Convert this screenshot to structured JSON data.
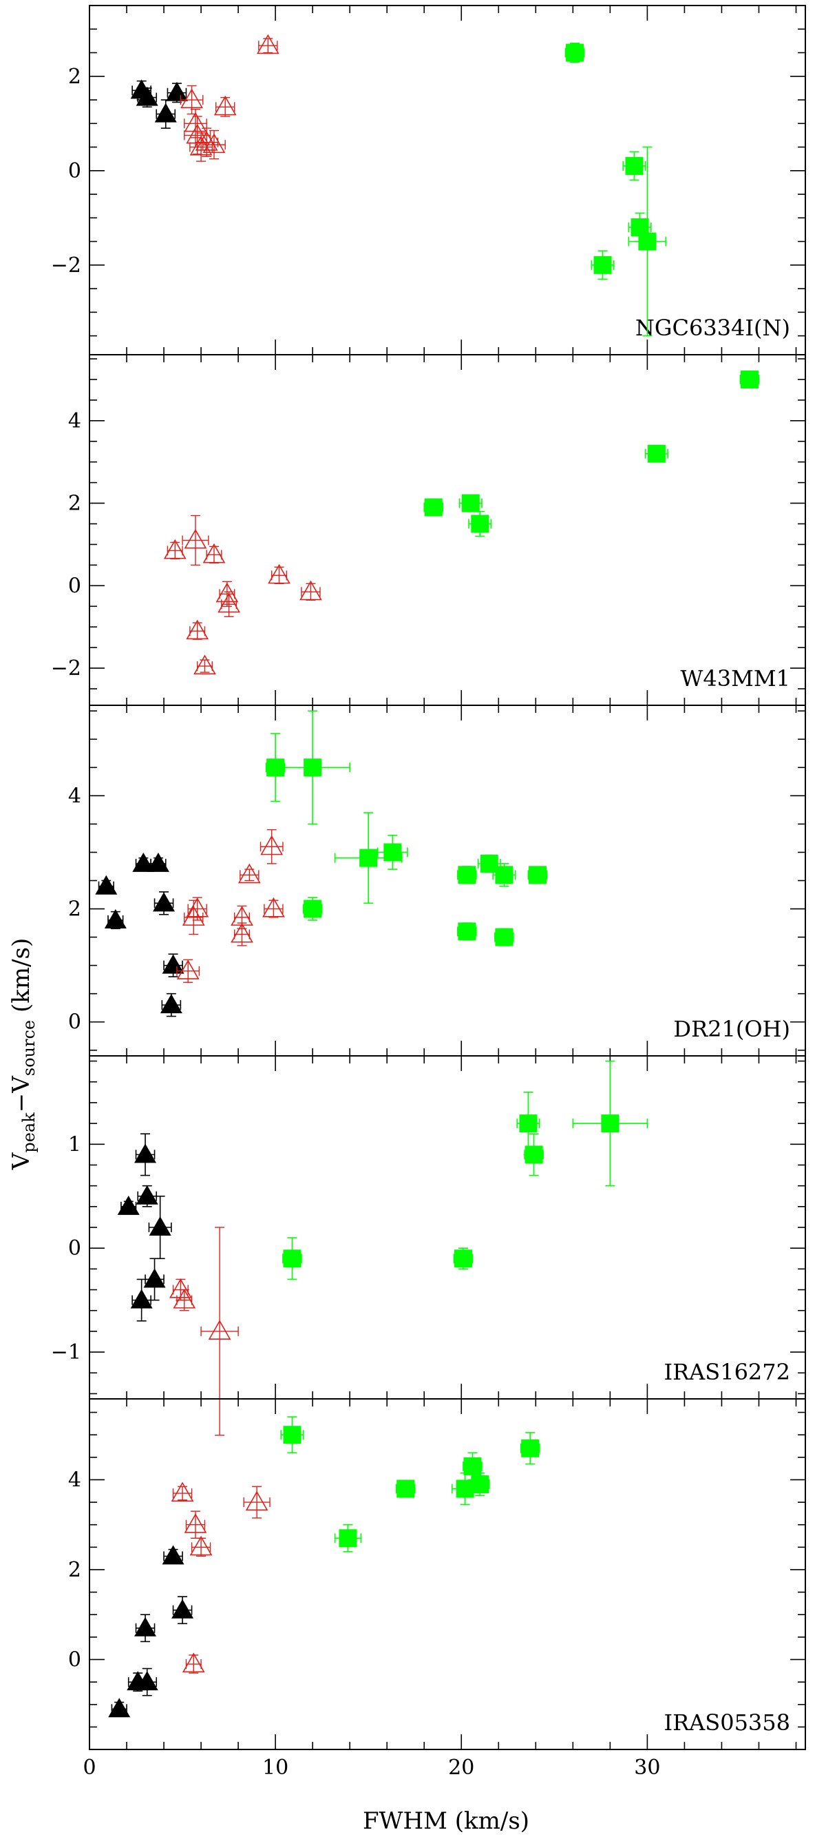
{
  "figure": {
    "xlabel": "FWHM (km/s)",
    "ylabel_main": "V",
    "ylabel_sub1": "peak",
    "ylabel_mid": "−V",
    "ylabel_sub2": "source",
    "ylabel_unit": " (km/s)"
  },
  "colors": {
    "black_triangle": "#000000",
    "red_open_triangle": "#e0201a",
    "green_square": "#00ff00"
  },
  "chart_data": [
    {
      "type": "scatter",
      "panel_label": "NGC6334I(N)",
      "xlim": [
        0,
        38.5
      ],
      "ylim": [
        -3.9,
        3.5
      ],
      "xticks": [
        0,
        10,
        20,
        30
      ],
      "yticks": [
        -2,
        0,
        2
      ],
      "series": [
        {
          "marker": "black-triangle",
          "points": [
            {
              "x": 2.8,
              "y": 1.7,
              "xerr": 0.5,
              "yerr": 0.2
            },
            {
              "x": 3.1,
              "y": 1.55,
              "xerr": 0.5,
              "yerr": 0.2
            },
            {
              "x": 4.1,
              "y": 1.2,
              "xerr": 0.5,
              "yerr": 0.3
            },
            {
              "x": 4.7,
              "y": 1.65,
              "xerr": 0.5,
              "yerr": 0.2
            }
          ]
        },
        {
          "marker": "red-open-triangle",
          "points": [
            {
              "x": 5.5,
              "y": 1.5,
              "xerr": 0.6,
              "yerr": 0.3
            },
            {
              "x": 5.7,
              "y": 1.0,
              "xerr": 0.6,
              "yerr": 0.3
            },
            {
              "x": 5.8,
              "y": 0.75,
              "xerr": 0.7,
              "yerr": 0.4
            },
            {
              "x": 6.0,
              "y": 0.5,
              "xerr": 0.6,
              "yerr": 0.3
            },
            {
              "x": 6.3,
              "y": 0.6,
              "xerr": 0.6,
              "yerr": 0.3
            },
            {
              "x": 6.7,
              "y": 0.55,
              "xerr": 0.6,
              "yerr": 0.3
            },
            {
              "x": 7.3,
              "y": 1.35,
              "xerr": 0.5,
              "yerr": 0.2
            },
            {
              "x": 9.6,
              "y": 2.65,
              "xerr": 0.5,
              "yerr": 0.15
            }
          ]
        },
        {
          "marker": "green-square",
          "points": [
            {
              "x": 26.1,
              "y": 2.5,
              "xerr": 0.5,
              "yerr": 0.2
            },
            {
              "x": 27.6,
              "y": -2.0,
              "xerr": 0.6,
              "yerr": 0.3
            },
            {
              "x": 29.3,
              "y": 0.1,
              "xerr": 0.6,
              "yerr": 0.3
            },
            {
              "x": 29.6,
              "y": -1.2,
              "xerr": 0.6,
              "yerr": 0.3
            },
            {
              "x": 30.0,
              "y": -1.5,
              "xerr": 1.0,
              "yerr": 2.0
            }
          ]
        }
      ]
    },
    {
      "type": "scatter",
      "panel_label": "W43MM1",
      "xlim": [
        0,
        38.5
      ],
      "ylim": [
        -2.9,
        5.6
      ],
      "xticks": [
        0,
        10,
        20,
        30
      ],
      "yticks": [
        -2,
        0,
        2,
        4
      ],
      "series": [
        {
          "marker": "red-open-triangle",
          "points": [
            {
              "x": 4.6,
              "y": 0.85,
              "xerr": 0.4,
              "yerr": 0.2
            },
            {
              "x": 5.7,
              "y": 1.1,
              "xerr": 0.7,
              "yerr": 0.6
            },
            {
              "x": 5.8,
              "y": -1.1,
              "xerr": 0.4,
              "yerr": 0.2
            },
            {
              "x": 6.2,
              "y": -1.95,
              "xerr": 0.4,
              "yerr": 0.15
            },
            {
              "x": 6.7,
              "y": 0.75,
              "xerr": 0.4,
              "yerr": 0.2
            },
            {
              "x": 7.4,
              "y": -0.2,
              "xerr": 0.4,
              "yerr": 0.3
            },
            {
              "x": 7.5,
              "y": -0.45,
              "xerr": 0.4,
              "yerr": 0.3
            },
            {
              "x": 10.2,
              "y": 0.25,
              "xerr": 0.4,
              "yerr": 0.2
            },
            {
              "x": 11.9,
              "y": -0.15,
              "xerr": 0.5,
              "yerr": 0.2
            }
          ]
        },
        {
          "marker": "green-square",
          "points": [
            {
              "x": 18.5,
              "y": 1.9,
              "xerr": 0.5,
              "yerr": 0.2
            },
            {
              "x": 20.5,
              "y": 2.0,
              "xerr": 0.6,
              "yerr": 0.2
            },
            {
              "x": 21.0,
              "y": 1.5,
              "xerr": 0.6,
              "yerr": 0.3
            },
            {
              "x": 30.5,
              "y": 3.2,
              "xerr": 0.6,
              "yerr": 0.2
            },
            {
              "x": 35.5,
              "y": 5.0,
              "xerr": 0.5,
              "yerr": 0.2
            }
          ]
        }
      ]
    },
    {
      "type": "scatter",
      "panel_label": "DR21(OH)",
      "xlim": [
        0,
        38.5
      ],
      "ylim": [
        -0.6,
        5.6
      ],
      "xticks": [
        0,
        10,
        20,
        30
      ],
      "yticks": [
        0,
        2,
        4
      ],
      "series": [
        {
          "marker": "black-triangle",
          "points": [
            {
              "x": 0.9,
              "y": 2.4,
              "xerr": 0.4,
              "yerr": 0.1
            },
            {
              "x": 1.4,
              "y": 1.8,
              "xerr": 0.4,
              "yerr": 0.15
            },
            {
              "x": 2.9,
              "y": 2.8,
              "xerr": 0.4,
              "yerr": 0.1
            },
            {
              "x": 3.7,
              "y": 2.8,
              "xerr": 0.4,
              "yerr": 0.1
            },
            {
              "x": 4.0,
              "y": 2.1,
              "xerr": 0.5,
              "yerr": 0.2
            },
            {
              "x": 4.5,
              "y": 1.0,
              "xerr": 0.5,
              "yerr": 0.2
            },
            {
              "x": 4.4,
              "y": 0.3,
              "xerr": 0.5,
              "yerr": 0.2
            }
          ]
        },
        {
          "marker": "red-open-triangle",
          "points": [
            {
              "x": 5.3,
              "y": 0.9,
              "xerr": 0.6,
              "yerr": 0.2
            },
            {
              "x": 5.6,
              "y": 1.85,
              "xerr": 0.5,
              "yerr": 0.3
            },
            {
              "x": 5.8,
              "y": 2.0,
              "xerr": 0.5,
              "yerr": 0.2
            },
            {
              "x": 8.2,
              "y": 1.55,
              "xerr": 0.4,
              "yerr": 0.2
            },
            {
              "x": 8.2,
              "y": 1.85,
              "xerr": 0.4,
              "yerr": 0.2
            },
            {
              "x": 8.6,
              "y": 2.6,
              "xerr": 0.5,
              "yerr": 0.1
            },
            {
              "x": 9.8,
              "y": 3.1,
              "xerr": 0.6,
              "yerr": 0.3
            },
            {
              "x": 9.9,
              "y": 2.0,
              "xerr": 0.5,
              "yerr": 0.15
            }
          ]
        },
        {
          "marker": "green-square",
          "points": [
            {
              "x": 10.0,
              "y": 4.5,
              "xerr": 0.5,
              "yerr": 0.6
            },
            {
              "x": 12.0,
              "y": 4.5,
              "xerr": 2.0,
              "yerr": 1.0
            },
            {
              "x": 12.0,
              "y": 2.0,
              "xerr": 0.5,
              "yerr": 0.2
            },
            {
              "x": 15.0,
              "y": 2.9,
              "xerr": 1.8,
              "yerr": 0.8
            },
            {
              "x": 16.3,
              "y": 3.0,
              "xerr": 0.8,
              "yerr": 0.3
            },
            {
              "x": 20.3,
              "y": 2.6,
              "xerr": 0.5,
              "yerr": 0.15
            },
            {
              "x": 20.3,
              "y": 1.6,
              "xerr": 0.5,
              "yerr": 0.15
            },
            {
              "x": 21.5,
              "y": 2.8,
              "xerr": 0.6,
              "yerr": 0.15
            },
            {
              "x": 22.3,
              "y": 2.6,
              "xerr": 0.6,
              "yerr": 0.2
            },
            {
              "x": 22.3,
              "y": 1.5,
              "xerr": 0.5,
              "yerr": 0.15
            },
            {
              "x": 24.1,
              "y": 2.6,
              "xerr": 0.5,
              "yerr": 0.1
            }
          ]
        }
      ]
    },
    {
      "type": "scatter",
      "panel_label": "IRAS16272",
      "xlim": [
        0,
        38.5
      ],
      "ylim": [
        -1.45,
        1.85
      ],
      "xticks": [
        0,
        10,
        20,
        30
      ],
      "yticks": [
        -1,
        0,
        1
      ],
      "series": [
        {
          "marker": "black-triangle",
          "points": [
            {
              "x": 2.1,
              "y": 0.4,
              "xerr": 0.4,
              "yerr": 0.05
            },
            {
              "x": 3.0,
              "y": 0.9,
              "xerr": 0.5,
              "yerr": 0.2
            },
            {
              "x": 3.1,
              "y": 0.5,
              "xerr": 0.5,
              "yerr": 0.1
            },
            {
              "x": 3.8,
              "y": 0.2,
              "xerr": 0.6,
              "yerr": 0.3
            },
            {
              "x": 2.8,
              "y": -0.5,
              "xerr": 0.5,
              "yerr": 0.2
            },
            {
              "x": 3.5,
              "y": -0.3,
              "xerr": 0.5,
              "yerr": 0.2
            }
          ]
        },
        {
          "marker": "red-open-triangle",
          "points": [
            {
              "x": 4.9,
              "y": -0.4,
              "xerr": 0.4,
              "yerr": 0.1
            },
            {
              "x": 5.1,
              "y": -0.5,
              "xerr": 0.4,
              "yerr": 0.1
            },
            {
              "x": 7.0,
              "y": -0.8,
              "xerr": 1.0,
              "yerr": 1.0
            }
          ]
        },
        {
          "marker": "green-square",
          "points": [
            {
              "x": 10.9,
              "y": -0.1,
              "xerr": 0.5,
              "yerr": 0.2
            },
            {
              "x": 20.1,
              "y": -0.1,
              "xerr": 0.5,
              "yerr": 0.1
            },
            {
              "x": 23.6,
              "y": 1.2,
              "xerr": 0.6,
              "yerr": 0.3
            },
            {
              "x": 23.9,
              "y": 0.9,
              "xerr": 0.5,
              "yerr": 0.2
            },
            {
              "x": 28.0,
              "y": 1.2,
              "xerr": 2.0,
              "yerr": 0.6
            }
          ]
        }
      ]
    },
    {
      "type": "scatter",
      "panel_label": "IRAS05358",
      "xlim": [
        0,
        38.5
      ],
      "ylim": [
        -2.0,
        5.8
      ],
      "xticks": [
        0,
        10,
        20,
        30
      ],
      "yticks": [
        0,
        2,
        4
      ],
      "series": [
        {
          "marker": "black-triangle",
          "points": [
            {
              "x": 1.6,
              "y": -1.1,
              "xerr": 0.4,
              "yerr": 0.15
            },
            {
              "x": 2.6,
              "y": -0.5,
              "xerr": 0.5,
              "yerr": 0.2
            },
            {
              "x": 3.1,
              "y": -0.5,
              "xerr": 0.5,
              "yerr": 0.3
            },
            {
              "x": 3.0,
              "y": 0.7,
              "xerr": 0.5,
              "yerr": 0.3
            },
            {
              "x": 4.5,
              "y": 2.3,
              "xerr": 0.5,
              "yerr": 0.15
            },
            {
              "x": 5.0,
              "y": 1.1,
              "xerr": 0.5,
              "yerr": 0.3
            }
          ]
        },
        {
          "marker": "red-open-triangle",
          "points": [
            {
              "x": 5.0,
              "y": 3.7,
              "xerr": 0.5,
              "yerr": 0.15
            },
            {
              "x": 5.6,
              "y": -0.1,
              "xerr": 0.4,
              "yerr": 0.2
            },
            {
              "x": 5.7,
              "y": 3.0,
              "xerr": 0.5,
              "yerr": 0.3
            },
            {
              "x": 6.0,
              "y": 2.5,
              "xerr": 0.5,
              "yerr": 0.2
            },
            {
              "x": 9.0,
              "y": 3.5,
              "xerr": 0.7,
              "yerr": 0.35
            }
          ]
        },
        {
          "marker": "green-square",
          "points": [
            {
              "x": 10.9,
              "y": 5.0,
              "xerr": 0.6,
              "yerr": 0.4
            },
            {
              "x": 13.9,
              "y": 2.7,
              "xerr": 0.7,
              "yerr": 0.3
            },
            {
              "x": 17.0,
              "y": 3.8,
              "xerr": 0.5,
              "yerr": 0.15
            },
            {
              "x": 20.2,
              "y": 3.8,
              "xerr": 0.7,
              "yerr": 0.35
            },
            {
              "x": 20.6,
              "y": 4.3,
              "xerr": 0.5,
              "yerr": 0.3
            },
            {
              "x": 21.0,
              "y": 3.9,
              "xerr": 0.5,
              "yerr": 0.25
            },
            {
              "x": 23.7,
              "y": 4.7,
              "xerr": 0.5,
              "yerr": 0.35
            }
          ]
        }
      ]
    }
  ]
}
